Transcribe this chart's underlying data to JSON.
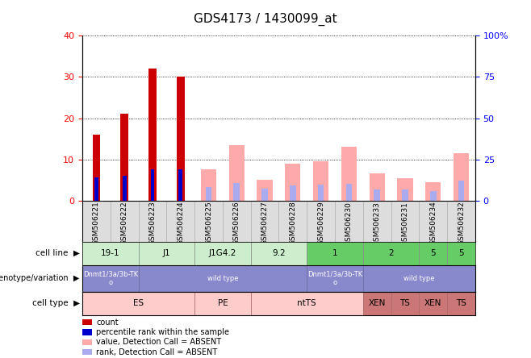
{
  "title": "GDS4173 / 1430099_at",
  "samples": [
    "GSM506221",
    "GSM506222",
    "GSM506223",
    "GSM506224",
    "GSM506225",
    "GSM506226",
    "GSM506227",
    "GSM506228",
    "GSM506229",
    "GSM506230",
    "GSM506233",
    "GSM506231",
    "GSM506234",
    "GSM506232"
  ],
  "count_values": [
    16,
    21,
    32,
    30,
    0,
    0,
    0,
    0,
    0,
    0,
    0,
    0,
    0,
    0
  ],
  "percentile_values": [
    14,
    15,
    19,
    19,
    0,
    0,
    0,
    0,
    0,
    0,
    0,
    0,
    0,
    0
  ],
  "absent_value_values": [
    0,
    0,
    0,
    0,
    7.5,
    13.5,
    5,
    9,
    9.5,
    13,
    6.5,
    5.5,
    4.5,
    11.5
  ],
  "absent_rank_values": [
    0,
    0,
    0,
    0,
    8,
    10.5,
    7,
    9,
    9.5,
    10,
    6.5,
    6.5,
    5.5,
    12
  ],
  "ylim_left": [
    0,
    40
  ],
  "ylim_right": [
    0,
    100
  ],
  "yticks_left": [
    0,
    10,
    20,
    30,
    40
  ],
  "yticks_right": [
    0,
    25,
    50,
    75,
    100
  ],
  "color_count": "#cc0000",
  "color_percentile": "#0000cc",
  "color_absent_value": "#ffaaaa",
  "color_absent_rank": "#aaaaee",
  "cell_line_final": [
    [
      0,
      2,
      "19-1",
      "#cceecc"
    ],
    [
      2,
      4,
      "J1",
      "#cceecc"
    ],
    [
      4,
      6,
      "J1G4.2",
      "#cceecc"
    ],
    [
      6,
      8,
      "9.2",
      "#cceecc"
    ],
    [
      8,
      10,
      "1",
      "#66cc66"
    ],
    [
      10,
      12,
      "2",
      "#66cc66"
    ],
    [
      12,
      13,
      "5",
      "#66cc66"
    ],
    [
      13,
      14,
      "5",
      "#66cc66"
    ]
  ],
  "genotype_final": [
    [
      0,
      2,
      "Dnmt1/3a/3b-TK\no",
      "#8888cc"
    ],
    [
      2,
      8,
      "wild type",
      "#8888cc"
    ],
    [
      8,
      10,
      "Dnmt1/3a/3b-TK\no",
      "#8888cc"
    ],
    [
      10,
      14,
      "wild type",
      "#8888cc"
    ]
  ],
  "celltype_final": [
    [
      0,
      4,
      "ES",
      "#ffcccc"
    ],
    [
      4,
      6,
      "PE",
      "#ffcccc"
    ],
    [
      6,
      10,
      "ntTS",
      "#ffcccc"
    ],
    [
      10,
      11,
      "XEN",
      "#cc7777"
    ],
    [
      11,
      12,
      "TS",
      "#cc7777"
    ],
    [
      12,
      13,
      "XEN",
      "#cc7777"
    ],
    [
      13,
      14,
      "TS",
      "#cc7777"
    ]
  ],
  "legend_items": [
    [
      "#cc0000",
      "count"
    ],
    [
      "#0000cc",
      "percentile rank within the sample"
    ],
    [
      "#ffaaaa",
      "value, Detection Call = ABSENT"
    ],
    [
      "#aaaaee",
      "rank, Detection Call = ABSENT"
    ]
  ],
  "background_color": "#ffffff"
}
